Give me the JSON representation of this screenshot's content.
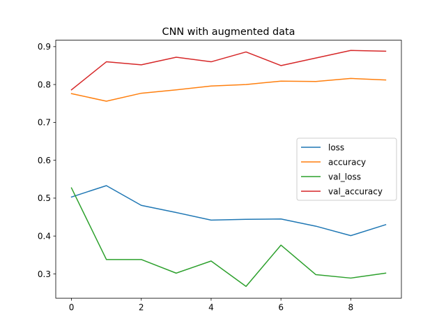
{
  "chart_data": {
    "type": "line",
    "title": "CNN with augmented data",
    "xlabel": "",
    "ylabel": "",
    "x": [
      0,
      1,
      2,
      3,
      4,
      5,
      6,
      7,
      8,
      9
    ],
    "xlim": [
      -0.45,
      9.45
    ],
    "ylim": [
      0.236,
      0.917
    ],
    "xticks": [
      0,
      2,
      4,
      6,
      8
    ],
    "yticks": [
      0.3,
      0.4,
      0.5,
      0.6,
      0.7,
      0.8,
      0.9
    ],
    "grid": false,
    "legend_position": "center-right",
    "series": [
      {
        "name": "loss",
        "color": "#1f77b4",
        "values": [
          0.503,
          0.533,
          0.481,
          0.462,
          0.442,
          0.444,
          0.445,
          0.426,
          0.401,
          0.43
        ]
      },
      {
        "name": "accuracy",
        "color": "#ff7f0e",
        "values": [
          0.776,
          0.756,
          0.777,
          0.786,
          0.796,
          0.8,
          0.809,
          0.808,
          0.816,
          0.812
        ]
      },
      {
        "name": "val_loss",
        "color": "#2ca02c",
        "values": [
          0.527,
          0.338,
          0.338,
          0.302,
          0.334,
          0.267,
          0.376,
          0.298,
          0.289,
          0.302
        ]
      },
      {
        "name": "val_accuracy",
        "color": "#d62728",
        "values": [
          0.786,
          0.86,
          0.852,
          0.872,
          0.86,
          0.886,
          0.85,
          0.87,
          0.89,
          0.888
        ]
      }
    ]
  }
}
